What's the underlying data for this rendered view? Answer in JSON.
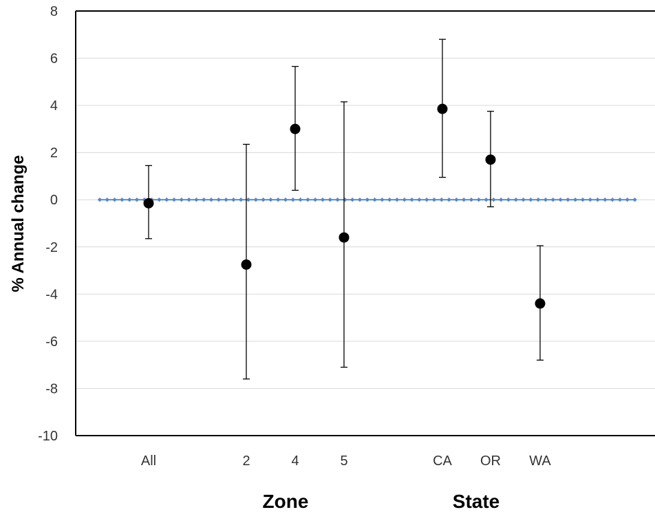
{
  "chart_data": {
    "type": "scatter",
    "ylabel": "% Annual change",
    "ylim": [
      -10,
      8
    ],
    "yticks": [
      8,
      6,
      4,
      2,
      0,
      -2,
      -4,
      -6,
      -8,
      -10
    ],
    "grid": "horizontal",
    "categories": [
      "All",
      "2",
      "4",
      "5",
      "CA",
      "OR",
      "WA"
    ],
    "group_labels": [
      "Zone",
      "State"
    ],
    "points": [
      {
        "category": "All",
        "value": -0.15,
        "error_low": -1.65,
        "error_high": 1.45
      },
      {
        "category": "2",
        "value": -2.75,
        "error_low": -7.6,
        "error_high": 2.35
      },
      {
        "category": "4",
        "value": 3.0,
        "error_low": 0.4,
        "error_high": 5.65
      },
      {
        "category": "5",
        "value": -1.6,
        "error_low": -7.1,
        "error_high": 4.15
      },
      {
        "category": "CA",
        "value": 3.85,
        "error_low": 0.95,
        "error_high": 6.8
      },
      {
        "category": "OR",
        "value": 1.7,
        "error_low": -0.3,
        "error_high": 3.75
      },
      {
        "category": "WA",
        "value": -4.4,
        "error_low": -6.8,
        "error_high": -1.95
      }
    ],
    "reference_line": {
      "value": 0,
      "style": "dotted",
      "color": "#5b87c5"
    },
    "colors": {
      "points": "#000000",
      "grid": "#d9d9d9",
      "axis": "#000000"
    }
  }
}
